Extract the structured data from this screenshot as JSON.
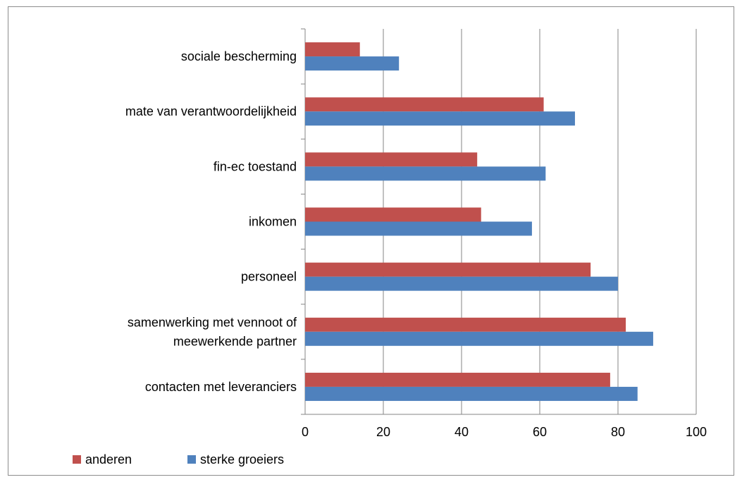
{
  "chart_data": {
    "type": "bar",
    "orientation": "horizontal",
    "categories": [
      "sociale bescherming",
      "mate van verantwoordelijkheid",
      "fin-ec toestand",
      "inkomen",
      "personeel",
      "samenwerking met vennoot of meewerkende partner",
      "contacten met leveranciers"
    ],
    "category_lines": [
      [
        "sociale bescherming"
      ],
      [
        "mate van verantwoordelijkheid"
      ],
      [
        "fin-ec toestand"
      ],
      [
        "inkomen"
      ],
      [
        "personeel"
      ],
      [
        "samenwerking met vennoot of",
        "meewerkende partner"
      ],
      [
        "contacten met leveranciers"
      ]
    ],
    "series": [
      {
        "name": "anderen",
        "color": "#c0504d",
        "values": [
          14,
          61,
          44,
          45,
          73,
          82,
          78
        ]
      },
      {
        "name": "sterke groeiers",
        "color": "#4f81bd",
        "values": [
          24,
          69,
          61.5,
          58,
          80,
          89,
          85
        ]
      }
    ],
    "xlim": [
      0,
      100
    ],
    "xticks": [
      "0",
      "20",
      "40",
      "60",
      "80",
      "100"
    ],
    "grid": "vertical major gridlines",
    "legend": "bottom-left",
    "title": "",
    "xlabel": "",
    "ylabel": ""
  }
}
